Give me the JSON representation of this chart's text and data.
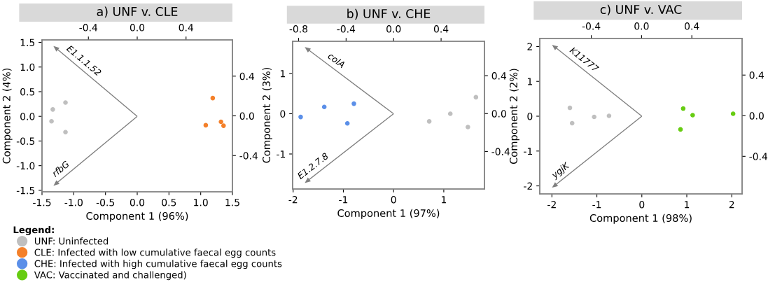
{
  "chart_data": [
    {
      "type": "scatter",
      "title": "a) UNF v. CLE",
      "xlabel": "Component 1 (96%)",
      "ylabel": "Component 2 (4%)",
      "legend_title": "Legend:",
      "legend": "bottom left",
      "grid": false,
      "marker": "circle",
      "xlim": [
        -1.5,
        1.5
      ],
      "xticks": [
        {
          "value": -1.5,
          "label": "-1.5"
        },
        {
          "value": -1.0,
          "label": "-1.0"
        },
        {
          "value": -0.5,
          "label": "-0.5"
        },
        {
          "value": 0.0,
          "label": "0.0"
        },
        {
          "value": 0.5,
          "label": "0.5"
        },
        {
          "value": 1.0,
          "label": "1.0"
        },
        {
          "value": 1.5,
          "label": "1.5"
        }
      ],
      "ylim": [
        -1.53,
        1.55
      ],
      "yticks": [
        {
          "value": -1.5,
          "label": "-1.5"
        },
        {
          "value": -1.0,
          "label": "-1.0"
        },
        {
          "value": -0.5,
          "label": "-0.5"
        },
        {
          "value": 0.0,
          "label": "0.0"
        },
        {
          "value": 0.5,
          "label": "0.5"
        },
        {
          "value": 1.0,
          "label": "1.0"
        },
        {
          "value": 1.5,
          "label": "1.5"
        }
      ],
      "x2lim": [
        -0.78,
        0.78
      ],
      "x2ticks": [
        {
          "value": -0.4,
          "label": "-0.4"
        },
        {
          "value": 0.0,
          "label": "0.0"
        },
        {
          "value": 0.4,
          "label": "0.4"
        }
      ],
      "y2lim": [
        -0.765,
        0.765
      ],
      "y2ticks": [
        {
          "value": -0.4,
          "label": "-0.4"
        },
        {
          "value": 0.0,
          "label": "0.0"
        },
        {
          "value": 0.4,
          "label": "0.4"
        }
      ],
      "annotations": [
        "E1.1.1.52",
        "rfbG"
      ],
      "series": [
        {
          "name": "UNF: Uninfected",
          "color": "#bfbfbf",
          "x": [
            -1.33,
            -1.35,
            -1.13,
            -1.13
          ],
          "values": [
            0.14,
            -0.1,
            0.28,
            -0.32
          ]
        },
        {
          "name": "CLE: Infected with low cumulative faecal egg counts",
          "color": "#f4802a",
          "x": [
            1.08,
            1.32,
            1.36,
            1.19
          ],
          "values": [
            -0.18,
            -0.11,
            -0.19,
            0.37
          ]
        }
      ]
    },
    {
      "type": "scatter",
      "title": "b) UNF v. CHE",
      "xlabel": "Component 1 (97%)",
      "ylabel": "Component 2 (3%)",
      "legend": "bottom left",
      "grid": false,
      "marker": "circle",
      "xlim": [
        -2.01,
        1.81
      ],
      "xticks": [
        -2,
        -1,
        0,
        1
      ],
      "ylim": [
        -1.87,
        1.8
      ],
      "yticks": [
        -1,
        0,
        1
      ],
      "x2lim": [
        -0.85,
        0.765
      ],
      "x2ticks": [
        {
          "value": -0.8,
          "label": "-0.8"
        },
        {
          "value": -0.4,
          "label": "-0.4"
        },
        {
          "value": 0.0,
          "label": "0.0"
        },
        {
          "value": 0.4,
          "label": "0.4"
        }
      ],
      "y2lim": [
        -0.796,
        0.763
      ],
      "y2ticks": [
        {
          "value": -0.4,
          "label": "-0.4"
        },
        {
          "value": 0.0,
          "label": "0.0"
        },
        {
          "value": 0.4,
          "label": "0.4"
        }
      ],
      "annotations": [
        "colA",
        "E1.2.7.8"
      ],
      "series": [
        {
          "name": "UNF: Uninfected",
          "color": "#bfbfbf",
          "x": [
            0.71,
            1.13,
            1.48,
            1.64
          ],
          "values": [
            -0.19,
            0.0,
            -0.33,
            0.41
          ]
        },
        {
          "name": "CHE: Infected with high cumulative faecal egg counts",
          "color": "#5b8fe8",
          "x": [
            -1.85,
            -1.38,
            -0.79,
            -0.92
          ],
          "values": [
            -0.08,
            0.17,
            0.25,
            -0.24
          ]
        }
      ]
    },
    {
      "type": "scatter",
      "title": "c) UNF v. VAC",
      "xlabel": "Component 1 (98%)",
      "ylabel": "Component 2 (2%)",
      "legend": "bottom left",
      "grid": false,
      "marker": "circle",
      "xlim": [
        -2.27,
        2.23
      ],
      "xticks": [
        -2,
        -1,
        0,
        1,
        2
      ],
      "ylim": [
        -2.23,
        2.23
      ],
      "yticks": [
        -2,
        -1,
        0,
        1,
        2
      ],
      "x2lim": [
        -0.81,
        0.8
      ],
      "x2ticks": [
        {
          "value": -0.4,
          "label": "-0.4"
        },
        {
          "value": 0.0,
          "label": "0.0"
        },
        {
          "value": 0.4,
          "label": "0.4"
        }
      ],
      "y2lim": [
        -0.77,
        0.76
      ],
      "y2ticks": [
        {
          "value": -0.4,
          "label": "-0.4"
        },
        {
          "value": 0.0,
          "label": "0.0"
        },
        {
          "value": 0.4,
          "label": "0.4"
        }
      ],
      "annotations": [
        "K11777",
        "ygjK"
      ],
      "series": [
        {
          "name": "UNF: Uninfected",
          "color": "#bfbfbf",
          "x": [
            -1.6,
            -1.55,
            -1.06,
            -0.73
          ],
          "values": [
            0.24,
            -0.2,
            -0.02,
            0.01
          ]
        },
        {
          "name": "VAC: Vaccinated and challenged)",
          "color": "#66cc11",
          "x": [
            0.92,
            1.13,
            0.86,
            2.03
          ],
          "values": [
            0.22,
            0.03,
            -0.38,
            0.07
          ]
        }
      ]
    }
  ]
}
